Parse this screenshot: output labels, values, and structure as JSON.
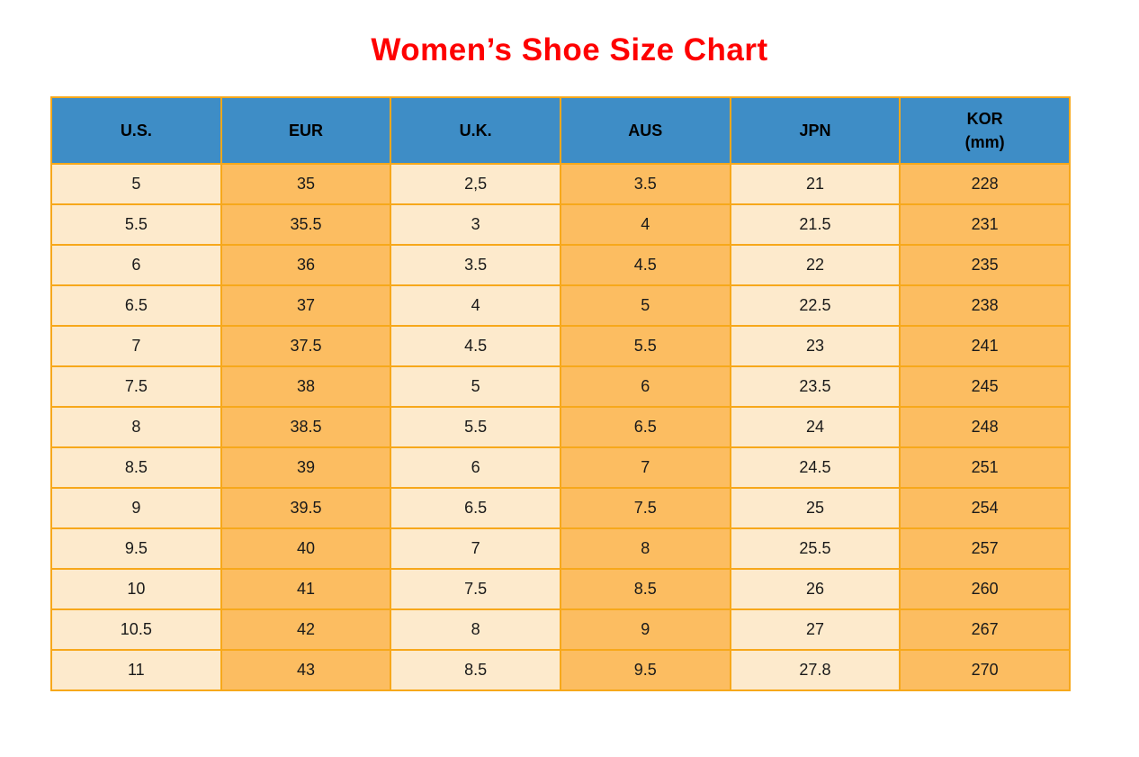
{
  "title": {
    "text": "Women’s Shoe Size Chart",
    "color": "#FE0000"
  },
  "colors": {
    "header_fill": "#3E8DC6",
    "cell_cream": "#FDEACC",
    "cell_orange": "#FCBD61",
    "border": "#F7A81B",
    "header_text": "#000000",
    "cell_text": "#1A1A1A"
  },
  "table": {
    "header_display": [
      "U.S.",
      "EUR",
      "U.K.",
      "AUS",
      "JPN",
      "KOR\n(mm)"
    ]
  },
  "chart_data": {
    "type": "table",
    "title": "Women’s Shoe Size Chart",
    "columns": [
      "U.S.",
      "EUR",
      "U.K.",
      "AUS",
      "JPN",
      "KOR (mm)"
    ],
    "rows": [
      [
        "5",
        "35",
        "2,5",
        "3.5",
        "21",
        "228"
      ],
      [
        "5.5",
        "35.5",
        "3",
        "4",
        "21.5",
        "231"
      ],
      [
        "6",
        "36",
        "3.5",
        "4.5",
        "22",
        "235"
      ],
      [
        "6.5",
        "37",
        "4",
        "5",
        "22.5",
        "238"
      ],
      [
        "7",
        "37.5",
        "4.5",
        "5.5",
        "23",
        "241"
      ],
      [
        "7.5",
        "38",
        "5",
        "6",
        "23.5",
        "245"
      ],
      [
        "8",
        "38.5",
        "5.5",
        "6.5",
        "24",
        "248"
      ],
      [
        "8.5",
        "39",
        "6",
        "7",
        "24.5",
        "251"
      ],
      [
        "9",
        "39.5",
        "6.5",
        "7.5",
        "25",
        "254"
      ],
      [
        "9.5",
        "40",
        "7",
        "8",
        "25.5",
        "257"
      ],
      [
        "10",
        "41",
        "7.5",
        "8.5",
        "26",
        "260"
      ],
      [
        "10.5",
        "42",
        "8",
        "9",
        "27",
        "267"
      ],
      [
        "11",
        "43",
        "8.5",
        "9.5",
        "27.8",
        "270"
      ]
    ],
    "column_fill_pattern": [
      "cream",
      "orange",
      "cream",
      "orange",
      "cream",
      "orange"
    ]
  }
}
